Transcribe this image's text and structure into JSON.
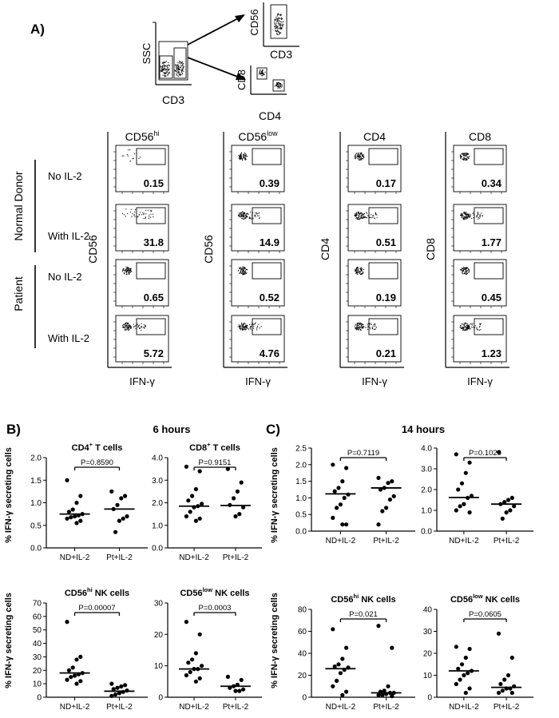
{
  "panel_a": {
    "label": "A)",
    "gating": {
      "ssc_label": "SSC",
      "cd3_label": "CD3",
      "cd56_label": "CD56",
      "cd3_label_2": "CD3",
      "cd8_label": "CD8",
      "cd4_label": "CD4"
    },
    "columns": [
      {
        "title": "CD56",
        "sup": "hi",
        "ylabel": "CD56",
        "xlabel": "IFN-γ",
        "values": [
          "0.15",
          "31.8",
          "0.65",
          "5.72"
        ]
      },
      {
        "title": "CD56",
        "sup": "low",
        "ylabel": "CD56",
        "xlabel": "IFN-γ",
        "values": [
          "0.39",
          "14.9",
          "0.52",
          "4.76"
        ]
      },
      {
        "title": "CD4",
        "sup": "",
        "ylabel": "CD4",
        "xlabel": "IFN-γ",
        "values": [
          "0.17",
          "0.51",
          "0.19",
          "0.21"
        ]
      },
      {
        "title": "CD8",
        "sup": "",
        "ylabel": "CD8",
        "xlabel": "IFN-γ",
        "values": [
          "0.34",
          "1.77",
          "0.45",
          "1.23"
        ]
      }
    ],
    "groups": [
      "Normal Donor",
      "Patient"
    ],
    "conditions": [
      "No IL-2",
      "With IL-2",
      "No IL-2",
      "With IL-2"
    ]
  },
  "panel_b": {
    "label": "B)",
    "time": "6 hours"
  },
  "panel_c": {
    "label": "C)",
    "time": "14 hours"
  },
  "y_axis_label": "% IFN-γ secreting cells",
  "chart_data": [
    {
      "type": "scatter",
      "panel": "B",
      "title": "CD4",
      "title_sup": "+",
      "title_rest": " T cells",
      "categories": [
        "ND+IL-2",
        "Pt+IL-2"
      ],
      "pvalue": "P=0.8590",
      "ylim": [
        0,
        2.0
      ],
      "yticks": [
        "0.0",
        "0.5",
        "1.0",
        "1.5",
        "2.0"
      ],
      "series": [
        {
          "name": "ND+IL-2",
          "median": 0.75,
          "values": [
            1.5,
            1.15,
            1.0,
            0.85,
            0.8,
            0.75,
            0.72,
            0.7,
            0.68,
            0.65,
            0.6,
            0.55
          ]
        },
        {
          "name": "Pt+IL-2",
          "median": 0.86,
          "values": [
            1.25,
            1.15,
            1.1,
            0.95,
            0.86,
            0.7,
            0.65,
            0.6,
            0.35
          ]
        }
      ]
    },
    {
      "type": "scatter",
      "panel": "B",
      "title": "CD8",
      "title_sup": "+",
      "title_rest": " T cells",
      "categories": [
        "ND+IL-2",
        "Pt+IL-2"
      ],
      "pvalue": "P=0.9151",
      "ylim": [
        0,
        4.0
      ],
      "yticks": [
        "0.0",
        "1.0",
        "2.0",
        "3.0",
        "4.0"
      ],
      "series": [
        {
          "name": "ND+IL-2",
          "median": 1.85,
          "values": [
            3.6,
            3.4,
            2.6,
            2.3,
            2.1,
            1.95,
            1.85,
            1.8,
            1.6,
            1.4,
            1.3,
            1.2
          ]
        },
        {
          "name": "Pt+IL-2",
          "median": 1.88,
          "values": [
            3.5,
            2.9,
            2.5,
            2.2,
            1.9,
            1.8,
            1.5,
            1.4
          ]
        }
      ]
    },
    {
      "type": "scatter",
      "panel": "C",
      "title": "",
      "title_sup": "",
      "title_rest": "",
      "categories": [
        "ND+IL-2",
        "Pt+IL-2"
      ],
      "pvalue": "P=0.7119",
      "ylim": [
        0,
        2.5
      ],
      "yticks": [
        "0.0",
        "0.5",
        "1.0",
        "1.5",
        "2.0",
        "2.5"
      ],
      "series": [
        {
          "name": "ND+IL-2",
          "median": 1.12,
          "values": [
            2.0,
            1.9,
            1.5,
            1.3,
            1.2,
            1.1,
            1.0,
            0.8,
            0.7,
            0.4,
            0.2,
            0.2
          ]
        },
        {
          "name": "Pt+IL-2",
          "median": 1.3,
          "values": [
            1.6,
            1.5,
            1.45,
            1.3,
            1.25,
            1.05,
            0.95,
            0.7,
            0.6,
            0.2
          ]
        }
      ]
    },
    {
      "type": "scatter",
      "panel": "C",
      "title": "",
      "title_sup": "",
      "title_rest": "",
      "categories": [
        "ND+IL-2",
        "Pt+IL-2"
      ],
      "pvalue": "P=0.1029",
      "ylim": [
        0,
        4.0
      ],
      "yticks": [
        "0.0",
        "1.0",
        "2.0",
        "3.0",
        "4.0"
      ],
      "series": [
        {
          "name": "ND+IL-2",
          "median": 1.62,
          "values": [
            3.7,
            3.3,
            2.8,
            2.3,
            2.0,
            1.7,
            1.6,
            1.3,
            1.2,
            1.0,
            0.9
          ]
        },
        {
          "name": "Pt+IL-2",
          "median": 1.3,
          "values": [
            3.8,
            1.6,
            1.5,
            1.4,
            1.3,
            1.2,
            1.0,
            0.9,
            0.6
          ]
        }
      ]
    },
    {
      "type": "scatter",
      "panel": "B",
      "title": "CD56",
      "title_sup": "hi",
      "title_rest": " NK cells",
      "categories": [
        "ND+IL-2",
        "Pt+IL-2"
      ],
      "pvalue": "P=0.00007",
      "ylim": [
        0,
        70
      ],
      "yticks": [
        "0",
        "10",
        "20",
        "30",
        "40",
        "50",
        "60",
        "70"
      ],
      "series": [
        {
          "name": "ND+IL-2",
          "median": 18,
          "values": [
            56,
            30,
            28,
            22,
            20,
            18,
            17,
            16,
            15,
            13,
            12,
            10
          ]
        },
        {
          "name": "Pt+IL-2",
          "median": 4.5,
          "values": [
            10,
            9,
            8,
            7,
            6,
            5,
            4,
            3,
            2,
            1
          ]
        }
      ]
    },
    {
      "type": "scatter",
      "panel": "B",
      "title": "CD56",
      "title_sup": "low",
      "title_rest": " NK cells",
      "categories": [
        "ND+IL-2",
        "Pt+IL-2"
      ],
      "pvalue": "P=0.0003",
      "ylim": [
        0,
        30
      ],
      "yticks": [
        "0",
        "10",
        "20",
        "30"
      ],
      "series": [
        {
          "name": "ND+IL-2",
          "median": 9,
          "values": [
            24,
            20,
            14,
            12,
            11,
            10,
            9,
            9,
            8,
            7,
            6,
            5
          ]
        },
        {
          "name": "Pt+IL-2",
          "median": 3.5,
          "values": [
            6.5,
            5.5,
            4,
            3.5,
            3,
            2.5,
            2,
            2
          ]
        }
      ]
    },
    {
      "type": "scatter",
      "panel": "C",
      "title": "CD56",
      "title_sup": "hi",
      "title_rest": " NK cells",
      "categories": [
        "ND+IL-2",
        "Pt+IL-2"
      ],
      "pvalue": "P=0.021",
      "ylim": [
        0,
        80
      ],
      "yticks": [
        "0",
        "20",
        "40",
        "60",
        "80"
      ],
      "series": [
        {
          "name": "ND+IL-2",
          "median": 26,
          "values": [
            62,
            45,
            35,
            30,
            28,
            27,
            25,
            22,
            15,
            10,
            5,
            2
          ]
        },
        {
          "name": "Pt+IL-2",
          "median": 4,
          "values": [
            65,
            45,
            10,
            6,
            5,
            4,
            4,
            3,
            2,
            2,
            1
          ]
        }
      ]
    },
    {
      "type": "scatter",
      "panel": "C",
      "title": "CD56",
      "title_sup": "low",
      "title_rest": " NK cells",
      "categories": [
        "ND+IL-2",
        "Pt+IL-2"
      ],
      "pvalue": "P=0.0605",
      "ylim": [
        0,
        40
      ],
      "yticks": [
        "0",
        "10",
        "20",
        "30",
        "40"
      ],
      "series": [
        {
          "name": "ND+IL-2",
          "median": 12,
          "values": [
            23,
            22,
            18,
            15,
            13,
            12,
            11,
            10,
            8,
            6,
            4,
            2
          ]
        },
        {
          "name": "Pt+IL-2",
          "median": 4.5,
          "values": [
            29,
            18,
            10,
            8,
            6,
            5,
            4,
            4,
            3,
            2,
            2
          ]
        }
      ]
    }
  ]
}
